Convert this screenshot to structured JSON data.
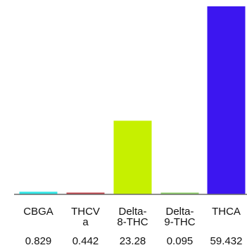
{
  "chart_data": {
    "type": "bar",
    "categories": [
      [
        "CBGA"
      ],
      [
        "THCV",
        "a"
      ],
      [
        "Delta-",
        "8-THC"
      ],
      [
        "Delta-",
        "9-THC"
      ],
      [
        "THCA"
      ]
    ],
    "values": [
      0.829,
      0.442,
      23.28,
      0.095,
      59.432
    ],
    "value_labels": [
      "0.829",
      "0.442",
      "23.28",
      "0.095",
      "59.432"
    ],
    "colors": [
      "#33e6e6",
      "#c0404a",
      "#c6f000",
      "#8ed068",
      "#3c16f0"
    ],
    "axis_line_color": "#6a6a6a",
    "ylim": [
      0,
      59.432
    ],
    "grid": false,
    "legend": "none"
  }
}
